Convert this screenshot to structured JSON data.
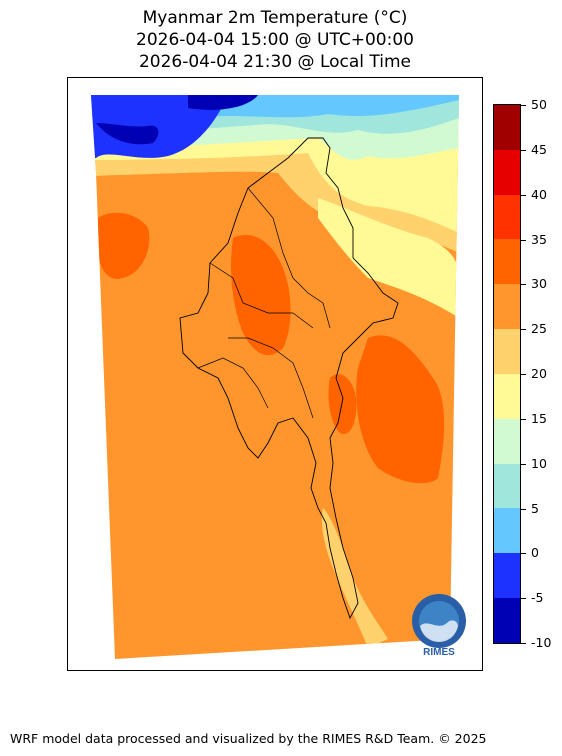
{
  "title": {
    "line1": "Myanmar 2m Temperature (°C)",
    "line2": "2026-04-04 15:00 @ UTC+00:00",
    "line3": "2026-04-04 21:30 @ Local Time"
  },
  "colorbar": {
    "levels": [
      -10,
      -5,
      0,
      5,
      10,
      15,
      20,
      25,
      30,
      35,
      40,
      45,
      50
    ],
    "labels": [
      "50",
      "45",
      "40",
      "35",
      "30",
      "25",
      "20",
      "15",
      "10",
      "5",
      "0",
      "-5",
      "-10"
    ],
    "colors": [
      "#0000b4",
      "#1e32ff",
      "#64c8ff",
      "#a0e6dc",
      "#d2fad2",
      "#fffa96",
      "#ffd26e",
      "#ff962d",
      "#ff6400",
      "#ff3200",
      "#e60000",
      "#a00000"
    ]
  },
  "logo": {
    "text": "RIMES"
  },
  "footer": "WRF model data processed and visualized by the RIMES R&D Team. © 2025"
}
